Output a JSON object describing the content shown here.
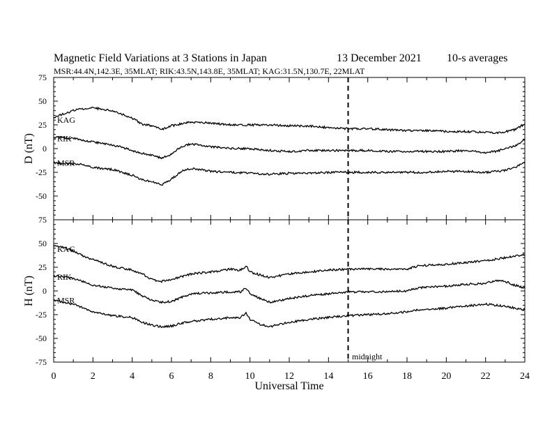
{
  "title": "Magnetic Field Variations at 3 Stations in Japan",
  "date": "13 December 2021",
  "averaging": "10-s averages",
  "stations_line": "MSR:44.4N,142.3E, 35MLAT;  RIK:43.5N,143.8E, 35MLAT;  KAG:31.5N,130.7E, 22MLAT",
  "xlabel": "Universal Time",
  "midnight_label": "midnight",
  "chart_data": [
    {
      "type": "line",
      "panel": "D",
      "ylabel": "D (nT)",
      "ylim": [
        -75,
        75
      ],
      "yticks": [
        75,
        50,
        25,
        0,
        -25,
        -50,
        -75
      ],
      "xlim": [
        0,
        24
      ],
      "xticks": [
        0,
        2,
        4,
        6,
        8,
        10,
        12,
        14,
        16,
        18,
        20,
        22,
        24
      ],
      "vline": 15,
      "grid": false,
      "series": [
        {
          "name": "KAG",
          "x": [
            0,
            1,
            1.5,
            2,
            3,
            3.5,
            4,
            4.5,
            5,
            5.5,
            6,
            6.5,
            7,
            8,
            9,
            10,
            11,
            12,
            13,
            14,
            15,
            16,
            17,
            18,
            19,
            20,
            21,
            22,
            22.5,
            23,
            23.5,
            24
          ],
          "values": [
            33,
            40,
            42,
            43,
            40,
            36,
            32,
            26,
            24,
            20,
            24,
            26,
            28,
            27,
            25,
            25,
            25,
            24,
            24,
            22,
            21,
            21,
            20,
            19,
            19,
            18,
            18,
            17,
            16,
            18,
            20,
            26
          ]
        },
        {
          "name": "RIK",
          "x": [
            0,
            1,
            1.5,
            2,
            3,
            4,
            4.5,
            5,
            5.5,
            6,
            6.5,
            7,
            8,
            9,
            10,
            11,
            12,
            13,
            14,
            15,
            16,
            17,
            18,
            19,
            20,
            21,
            22,
            22.5,
            23,
            23.5,
            24
          ],
          "values": [
            12,
            11,
            9,
            7,
            4,
            -2,
            -5,
            -7,
            -10,
            -6,
            2,
            5,
            2,
            0,
            0,
            -2,
            -3,
            -2,
            -2,
            -2,
            -2,
            -3,
            -3,
            -3,
            -3,
            -2,
            -4,
            -3,
            0,
            3,
            9
          ]
        },
        {
          "name": "MSR",
          "x": [
            0,
            1,
            1.5,
            2,
            3,
            4,
            4.5,
            5,
            5.5,
            6,
            6.5,
            7,
            8,
            9,
            10,
            11,
            12,
            13,
            14,
            15,
            16,
            17,
            18,
            19,
            20,
            21,
            22,
            22.5,
            23,
            23.5,
            24
          ],
          "values": [
            -15,
            -16,
            -17,
            -20,
            -22,
            -28,
            -33,
            -35,
            -38,
            -32,
            -24,
            -21,
            -24,
            -25,
            -26,
            -27,
            -26,
            -26,
            -25,
            -25,
            -25,
            -25,
            -25,
            -25,
            -24,
            -24,
            -25,
            -24,
            -23,
            -20,
            -14
          ]
        }
      ]
    },
    {
      "type": "line",
      "panel": "H",
      "ylabel": "H (nT)",
      "ylim": [
        -75,
        75
      ],
      "yticks": [
        75,
        50,
        25,
        0,
        -25,
        -50,
        -75
      ],
      "xlim": [
        0,
        24
      ],
      "xticks": [
        0,
        2,
        4,
        6,
        8,
        10,
        12,
        14,
        16,
        18,
        20,
        22,
        24
      ],
      "vline": 15,
      "grid": false,
      "series": [
        {
          "name": "KAG",
          "x": [
            0,
            0.5,
            1,
            1.5,
            2,
            3,
            3.5,
            4,
            4.5,
            5,
            5.5,
            6,
            6.5,
            7,
            8,
            9,
            9.5,
            9.8,
            10,
            10.5,
            11,
            11.5,
            12,
            13,
            14,
            15,
            16,
            17,
            18,
            18.5,
            19,
            20,
            21,
            22,
            23,
            23.5,
            24
          ],
          "values": [
            47,
            46,
            42,
            37,
            33,
            26,
            24,
            22,
            18,
            12,
            10,
            12,
            15,
            18,
            20,
            23,
            22,
            26,
            20,
            17,
            14,
            16,
            18,
            20,
            22,
            23,
            23,
            23,
            23,
            26,
            27,
            28,
            30,
            32,
            35,
            37,
            38
          ]
        },
        {
          "name": "RIK",
          "x": [
            0,
            0.5,
            1,
            1.5,
            2,
            3,
            3.5,
            4,
            4.5,
            5,
            5.5,
            6,
            6.5,
            7,
            8,
            9,
            9.5,
            9.8,
            10,
            10.5,
            11,
            11.5,
            12,
            13,
            14,
            15,
            16,
            17,
            18,
            18.5,
            19,
            20,
            21,
            22,
            22.5,
            23,
            23.5,
            24
          ],
          "values": [
            16,
            15,
            13,
            10,
            6,
            3,
            2,
            1,
            -5,
            -10,
            -12,
            -11,
            -7,
            -3,
            -2,
            -1,
            -1,
            3,
            -3,
            -8,
            -12,
            -10,
            -8,
            -5,
            -3,
            -1,
            -1,
            -1,
            0,
            3,
            4,
            5,
            7,
            8,
            11,
            10,
            6,
            3
          ]
        },
        {
          "name": "MSR",
          "x": [
            0,
            0.5,
            1,
            1.5,
            2,
            3,
            3.5,
            4,
            4.5,
            5,
            5.5,
            6,
            6.5,
            7,
            8,
            9,
            9.5,
            9.8,
            10,
            10.5,
            11,
            11.5,
            12,
            13,
            14,
            15,
            16,
            17,
            18,
            18.5,
            19,
            20,
            21,
            22,
            23,
            23.5,
            24
          ],
          "values": [
            -10,
            -12,
            -14,
            -18,
            -22,
            -26,
            -27,
            -28,
            -33,
            -36,
            -38,
            -37,
            -34,
            -32,
            -30,
            -28,
            -28,
            -23,
            -30,
            -35,
            -38,
            -35,
            -33,
            -30,
            -28,
            -26,
            -25,
            -24,
            -22,
            -20,
            -20,
            -18,
            -16,
            -14,
            -16,
            -18,
            -20
          ]
        }
      ]
    }
  ]
}
